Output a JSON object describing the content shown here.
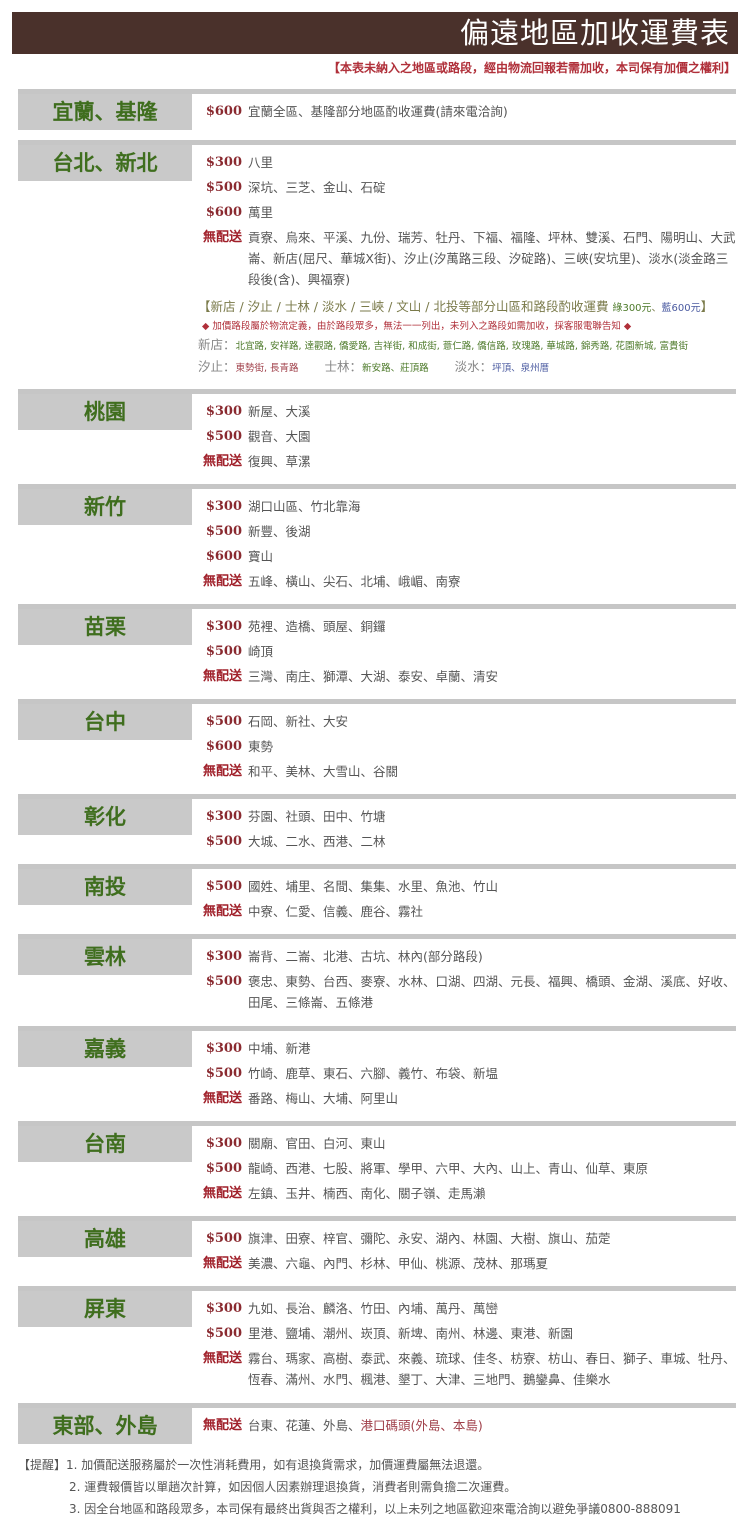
{
  "header": {
    "title": "偏遠地區加收運費表",
    "subtitle": "【本表未納入之地區或路段，經由物流回報若需加收，本司保有加價之權利】"
  },
  "colors": {
    "header_bg": "#4a312b",
    "region": "#3f6e1e",
    "price": "#8a2a30",
    "label_bg": "#c9c9c9"
  },
  "sections": [
    {
      "name": "宜蘭、基隆",
      "rows": [
        {
          "price": "$600",
          "text": "宜蘭全區、基隆部分地區酌收運費(請來電洽詢)"
        }
      ]
    },
    {
      "name": "台北、新北",
      "rows": [
        {
          "price": "$300",
          "text": "八里"
        },
        {
          "price": "$500",
          "text": "深坑、三芝、金山、石碇"
        },
        {
          "price": "$600",
          "text": "萬里"
        },
        {
          "price": "無配送",
          "text": "貢寮、烏來、平溪、九份、瑞芳、牡丹、下福、福隆、坪林、雙溪、石門、陽明山、大武崙、新店(屈尺、華城X街)、汐止(汐萬路三段、汐碇路)、三峽(安坑里)、淡水(淡金路三段後(含)、興福寮)"
        }
      ]
    },
    {
      "name": "桃園",
      "rows": [
        {
          "price": "$300",
          "text": "新屋、大溪"
        },
        {
          "price": "$500",
          "text": "觀音、大園"
        },
        {
          "price": "無配送",
          "text": "復興、草漯"
        }
      ]
    },
    {
      "name": "新竹",
      "rows": [
        {
          "price": "$300",
          "text": "湖口山區、竹北靠海"
        },
        {
          "price": "$500",
          "text": "新豐、後湖"
        },
        {
          "price": "$600",
          "text": "寶山"
        },
        {
          "price": "無配送",
          "text": "五峰、橫山、尖石、北埔、峨嵋、南寮"
        }
      ]
    },
    {
      "name": "苗栗",
      "rows": [
        {
          "price": "$300",
          "text": "苑裡、造橋、頭屋、銅鑼"
        },
        {
          "price": "$500",
          "text": "崎頂"
        },
        {
          "price": "無配送",
          "text": "三灣、南庄、獅潭、大湖、泰安、卓蘭、清安"
        }
      ]
    },
    {
      "name": "台中",
      "rows": [
        {
          "price": "$500",
          "text": "石岡、新社、大安"
        },
        {
          "price": "$600",
          "text": "東勢"
        },
        {
          "price": "無配送",
          "text": "和平、美林、大雪山、谷關"
        }
      ]
    },
    {
      "name": "彰化",
      "rows": [
        {
          "price": "$300",
          "text": "芬園、社頭、田中、竹塘"
        },
        {
          "price": "$500",
          "text": "大城、二水、西港、二林"
        }
      ]
    },
    {
      "name": "南投",
      "rows": [
        {
          "price": "$500",
          "text": "國姓、埔里、名間、集集、水里、魚池、竹山"
        },
        {
          "price": "無配送",
          "text": "中寮、仁愛、信義、鹿谷、霧社"
        }
      ]
    },
    {
      "name": "雲林",
      "rows": [
        {
          "price": "$300",
          "text": "崙背、二崙、北港、古坑、林內(部分路段)"
        },
        {
          "price": "$500",
          "text": "褒忠、東勢、台西、麥寮、水林、口湖、四湖、元長、福興、橋頭、金湖、溪底、好收、田尾、三條崙、五條港"
        }
      ]
    },
    {
      "name": "嘉義",
      "rows": [
        {
          "price": "$300",
          "text": "中埔、新港"
        },
        {
          "price": "$500",
          "text": "竹崎、鹿草、東石、六腳、義竹、布袋、新塭"
        },
        {
          "price": "無配送",
          "text": "番路、梅山、大埔、阿里山"
        }
      ]
    },
    {
      "name": "台南",
      "rows": [
        {
          "price": "$300",
          "text": "關廟、官田、白河、東山"
        },
        {
          "price": "$500",
          "text": "龍崎、西港、七股、將軍、學甲、六甲、大內、山上、青山、仙草、東原"
        },
        {
          "price": "無配送",
          "text": "左鎮、玉井、楠西、南化、關子嶺、走馬瀨"
        }
      ]
    },
    {
      "name": "高雄",
      "rows": [
        {
          "price": "$500",
          "text": "旗津、田寮、梓官、彌陀、永安、湖內、林園、大樹、旗山、茄萣"
        },
        {
          "price": "無配送",
          "text": "美濃、六龜、內門、杉林、甲仙、桃源、茂林、那瑪夏"
        }
      ]
    },
    {
      "name": "屏東",
      "rows": [
        {
          "price": "$300",
          "text": "九如、長治、麟洛、竹田、內埔、萬丹、萬巒"
        },
        {
          "price": "$500",
          "text": "里港、鹽埔、潮州、崁頂、新埤、南州、林邊、東港、新園"
        },
        {
          "price": "無配送",
          "text": "霧台、瑪家、高樹、泰武、來義、琉球、佳冬、枋寮、枋山、春日、獅子、車城、牡丹、恆春、滿州、水門、楓港、墾丁、大津、三地門、鵝鑾鼻、佳樂水"
        }
      ]
    },
    {
      "name": "東部、外島",
      "rows": [
        {
          "price": "無配送",
          "text": "台東、花蓮、外島、",
          "text_red": "港口碼頭(外島、本島)"
        }
      ]
    }
  ],
  "taipei_notes": {
    "bracket_open": "【",
    "bracket_text": "新店 / 汐止 / 士林 / 淡水 / 三峽 / 文山 / 北投等部分山區和路段酌收運費",
    "green_price": "綠300元",
    "sep": "、",
    "blue_price": "藍600元",
    "bracket_close": "】",
    "warning": "◆ 加價路段屬於物流定義，由於路段眾多，無法一一列出，未列入之路段如需加收，採客服電聯告知 ◆",
    "xindian_label": "新店：",
    "xindian_streets": "北宜路, 安祥路, 達觀路, 僑愛路, 吉祥街, 和成街, 薏仁路, 僑信路, 玫瑰路, 華城路, 錦秀路, 花園新城, 富貴街",
    "xizhi_label": "汐止：",
    "xizhi_streets": "東勢街, 長青路",
    "shilin_label": "士林：",
    "shilin_streets": "新安路、莊頂路",
    "tamsui_label": "淡水：",
    "tamsui_streets": "坪頂、泉州厝"
  },
  "footer": {
    "label": "【提醒】",
    "items": [
      "1. 加價配送服務屬於一次性消耗費用，如有退換貨需求，加價運費屬無法退還。",
      "2. 運費報價皆以單趟次計算，如因個人因素辦理退換貨，消費者則需負擔二次運費。",
      "3. 因全台地區和路段眾多，本司保有最終出貨與否之權利，以上未列之地區歡迎來電洽詢以避免爭議0800-888091"
    ]
  }
}
